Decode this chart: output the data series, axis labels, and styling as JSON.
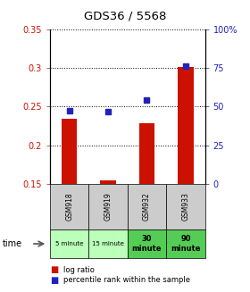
{
  "title": "GDS36 / 5568",
  "samples": [
    "GSM918",
    "GSM919",
    "GSM932",
    "GSM933"
  ],
  "time_labels": [
    "5 minute",
    "15 minute",
    "30\nminute",
    "90\nminute"
  ],
  "time_colors_light": [
    "#bbffbb",
    "#bbffbb"
  ],
  "time_colors_dark": [
    "#55cc55",
    "#55cc55"
  ],
  "log_ratio": [
    0.234,
    0.155,
    0.229,
    0.301
  ],
  "log_ratio_base": 0.15,
  "percentile_rank": [
    47.5,
    46.5,
    54.0,
    76.0
  ],
  "ylim_left": [
    0.15,
    0.35
  ],
  "ylim_right": [
    0,
    100
  ],
  "yticks_left": [
    0.15,
    0.2,
    0.25,
    0.3,
    0.35
  ],
  "yticks_right": [
    0,
    25,
    50,
    75,
    100
  ],
  "ytick_labels_right": [
    "0",
    "25",
    "50",
    "75",
    "100%"
  ],
  "bar_color": "#cc1100",
  "dot_color": "#2222bb",
  "bar_width": 0.4,
  "sample_bg": "#cccccc",
  "fig_width": 2.8,
  "fig_height": 3.27,
  "dpi": 100
}
